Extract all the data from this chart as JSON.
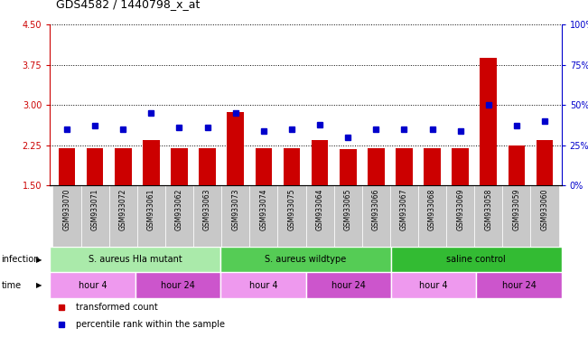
{
  "title": "GDS4582 / 1440798_x_at",
  "samples": [
    "GSM933070",
    "GSM933071",
    "GSM933072",
    "GSM933061",
    "GSM933062",
    "GSM933063",
    "GSM933073",
    "GSM933074",
    "GSM933075",
    "GSM933064",
    "GSM933065",
    "GSM933066",
    "GSM933067",
    "GSM933068",
    "GSM933069",
    "GSM933058",
    "GSM933059",
    "GSM933060"
  ],
  "bar_values": [
    2.19,
    2.2,
    2.19,
    2.35,
    2.2,
    2.19,
    2.86,
    2.19,
    2.19,
    2.35,
    2.18,
    2.19,
    2.19,
    2.19,
    2.19,
    3.88,
    2.25,
    2.35
  ],
  "dot_values": [
    35,
    37,
    35,
    45,
    36,
    36,
    45,
    34,
    35,
    38,
    30,
    35,
    35,
    35,
    34,
    50,
    37,
    40
  ],
  "ylim_left": [
    1.5,
    4.5
  ],
  "ylim_right": [
    0,
    100
  ],
  "yticks_left": [
    1.5,
    2.25,
    3.0,
    3.75,
    4.5
  ],
  "yticks_right": [
    0,
    25,
    50,
    75,
    100
  ],
  "bar_color": "#cc0000",
  "dot_color": "#0000cc",
  "infection_groups": [
    {
      "label": "S. aureus Hla mutant",
      "start": 0,
      "end": 6,
      "color": "#aaeaaa"
    },
    {
      "label": "S. aureus wildtype",
      "start": 6,
      "end": 12,
      "color": "#55cc55"
    },
    {
      "label": "saline control",
      "start": 12,
      "end": 18,
      "color": "#33bb33"
    }
  ],
  "time_groups": [
    {
      "label": "hour 4",
      "start": 0,
      "end": 3,
      "color": "#ee99ee"
    },
    {
      "label": "hour 24",
      "start": 3,
      "end": 6,
      "color": "#cc55cc"
    },
    {
      "label": "hour 4",
      "start": 6,
      "end": 9,
      "color": "#ee99ee"
    },
    {
      "label": "hour 24",
      "start": 9,
      "end": 12,
      "color": "#cc55cc"
    },
    {
      "label": "hour 4",
      "start": 12,
      "end": 15,
      "color": "#ee99ee"
    },
    {
      "label": "hour 24",
      "start": 15,
      "end": 18,
      "color": "#cc55cc"
    }
  ],
  "legend_bar_label": "transformed count",
  "legend_dot_label": "percentile rank within the sample",
  "xlabel_infection": "infection",
  "xlabel_time": "time"
}
